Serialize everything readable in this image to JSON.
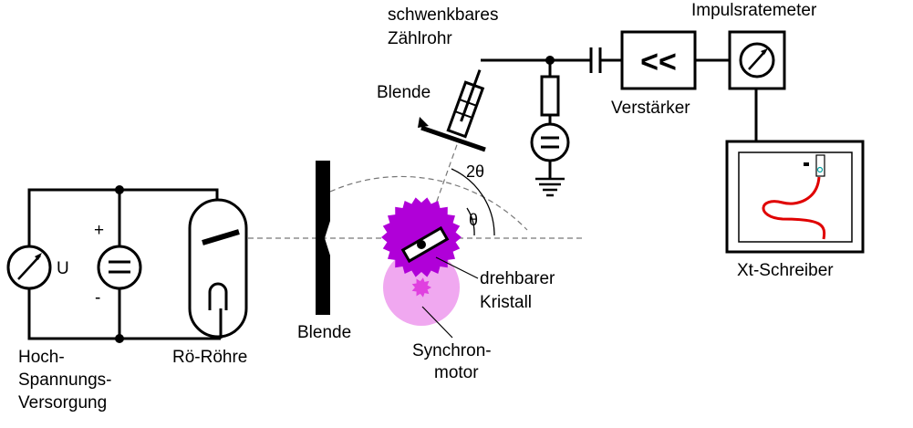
{
  "labels": {
    "zaehlrohr_line1": "schwenkbares",
    "zaehlrohr_line2": "Zählrohr",
    "impulsratemeter": "Impulsratemeter",
    "blende_top": "Blende",
    "verstaerker": "Verstärker",
    "verstaerker_symbol": "<<",
    "two_theta": "2θ",
    "theta": "θ",
    "plus": "+",
    "minus": "-",
    "u": "U",
    "kristall_line1": "drehbarer",
    "kristall_line2": "Kristall",
    "xt_schreiber": "Xt-Schreiber",
    "blende_bottom": "Blende",
    "synchron_line1": "Synchron-",
    "synchron_line2": "motor",
    "hoch_line1": "Hoch-",
    "hoch_line2": "Spannungs-",
    "hoch_line3": "Versorgung",
    "roehre": "Rö-Röhre"
  },
  "colors": {
    "crystal_gear": "#b000d8",
    "motor_disc": "#f0a8f0",
    "motor_gear": "#e040e0",
    "trace": "#e00000",
    "pen": "#00a0a0"
  }
}
